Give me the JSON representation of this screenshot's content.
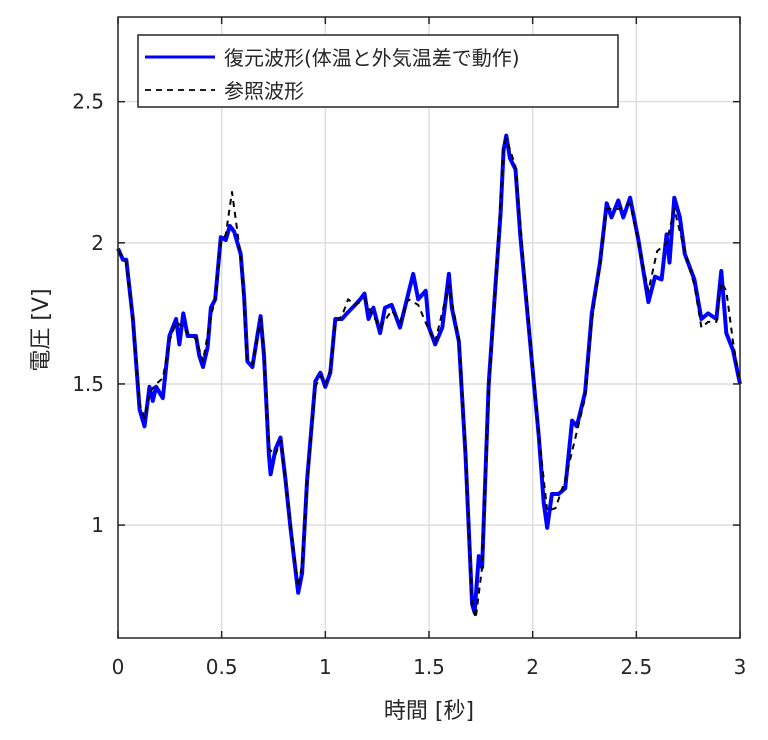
{
  "chart_data": {
    "type": "line",
    "xlabel": "時間 [秒]",
    "ylabel": "電圧 [V]",
    "xlim": [
      0,
      3
    ],
    "ylim": [
      0.6,
      2.8
    ],
    "xticks": [
      "0",
      "0.5",
      "1",
      "1.5",
      "2",
      "2.5",
      "3"
    ],
    "yticks": [
      "1",
      "1.5",
      "2",
      "2.5"
    ],
    "grid": true,
    "legend_position": "top-left",
    "series": [
      {
        "name": "復元波形(体温と外気温差で動作)",
        "color": "#0000ff",
        "style": "solid",
        "x": [
          0,
          0.024,
          0.04,
          0.072,
          0.104,
          0.128,
          0.152,
          0.168,
          0.184,
          0.216,
          0.248,
          0.28,
          0.296,
          0.315,
          0.336,
          0.376,
          0.392,
          0.41,
          0.432,
          0.448,
          0.469,
          0.496,
          0.52,
          0.539,
          0.56,
          0.592,
          0.608,
          0.624,
          0.648,
          0.672,
          0.688,
          0.704,
          0.728,
          0.736,
          0.76,
          0.784,
          0.808,
          0.832,
          0.848,
          0.869,
          0.888,
          0.912,
          0.928,
          0.952,
          0.976,
          1.0,
          1.024,
          1.048,
          1.08,
          1.104,
          1.144,
          1.168,
          1.189,
          1.208,
          1.232,
          1.264,
          1.288,
          1.32,
          1.36,
          1.4,
          1.424,
          1.448,
          1.484,
          1.5,
          1.53,
          1.564,
          1.596,
          1.61,
          1.644,
          1.676,
          1.708,
          1.72,
          1.74,
          1.756,
          1.788,
          1.82,
          1.845,
          1.86,
          1.873,
          1.89,
          1.917,
          1.94,
          1.99,
          2.03,
          2.053,
          2.07,
          2.093,
          2.125,
          2.157,
          2.19,
          2.213,
          2.253,
          2.285,
          2.325,
          2.357,
          2.38,
          2.413,
          2.437,
          2.47,
          2.51,
          2.558,
          2.59,
          2.622,
          2.646,
          2.66,
          2.683,
          2.71,
          2.734,
          2.78,
          2.814,
          2.846,
          2.886,
          2.91,
          2.934,
          2.966,
          3.0
        ],
        "y": [
          1.98,
          1.94,
          1.94,
          1.73,
          1.41,
          1.35,
          1.49,
          1.44,
          1.49,
          1.45,
          1.67,
          1.73,
          1.64,
          1.75,
          1.67,
          1.67,
          1.6,
          1.56,
          1.63,
          1.77,
          1.8,
          2.02,
          2.01,
          2.06,
          2.04,
          1.96,
          1.81,
          1.58,
          1.56,
          1.67,
          1.74,
          1.6,
          1.25,
          1.18,
          1.27,
          1.31,
          1.16,
          0.99,
          0.89,
          0.76,
          0.83,
          1.16,
          1.3,
          1.51,
          1.54,
          1.49,
          1.54,
          1.73,
          1.73,
          1.75,
          1.78,
          1.8,
          1.82,
          1.73,
          1.77,
          1.68,
          1.77,
          1.78,
          1.7,
          1.82,
          1.89,
          1.8,
          1.83,
          1.7,
          1.64,
          1.7,
          1.89,
          1.77,
          1.65,
          1.25,
          0.72,
          0.69,
          0.89,
          0.85,
          1.5,
          1.84,
          2.1,
          2.33,
          2.38,
          2.3,
          2.26,
          2.03,
          1.63,
          1.31,
          1.08,
          0.99,
          1.11,
          1.11,
          1.13,
          1.37,
          1.35,
          1.47,
          1.75,
          1.93,
          2.14,
          2.09,
          2.15,
          2.09,
          2.16,
          2.01,
          1.79,
          1.88,
          1.87,
          2.03,
          1.93,
          2.16,
          2.09,
          1.96,
          1.87,
          1.73,
          1.75,
          1.73,
          1.9,
          1.68,
          1.62,
          1.5
        ]
      },
      {
        "name": "参照波形",
        "color": "#000000",
        "style": "dashed",
        "x": [
          0,
          0.024,
          0.04,
          0.072,
          0.104,
          0.128,
          0.152,
          0.184,
          0.216,
          0.248,
          0.28,
          0.315,
          0.336,
          0.376,
          0.41,
          0.448,
          0.469,
          0.496,
          0.52,
          0.55,
          0.565,
          0.592,
          0.608,
          0.624,
          0.648,
          0.672,
          0.688,
          0.704,
          0.728,
          0.76,
          0.784,
          0.808,
          0.832,
          0.869,
          0.888,
          0.912,
          0.952,
          0.976,
          1.0,
          1.024,
          1.048,
          1.08,
          1.11,
          1.144,
          1.189,
          1.232,
          1.264,
          1.32,
          1.36,
          1.4,
          1.448,
          1.5,
          1.53,
          1.596,
          1.644,
          1.676,
          1.708,
          1.725,
          1.756,
          1.788,
          1.82,
          1.86,
          1.873,
          1.917,
          1.99,
          2.03,
          2.07,
          2.11,
          2.157,
          2.213,
          2.253,
          2.285,
          2.325,
          2.357,
          2.413,
          2.47,
          2.51,
          2.558,
          2.6,
          2.646,
          2.683,
          2.734,
          2.78,
          2.814,
          2.846,
          2.886,
          2.91,
          2.934,
          2.966,
          3.0
        ],
        "y": [
          1.97,
          1.95,
          1.93,
          1.72,
          1.43,
          1.38,
          1.47,
          1.5,
          1.52,
          1.65,
          1.72,
          1.7,
          1.68,
          1.66,
          1.58,
          1.74,
          1.8,
          2.0,
          2.03,
          2.18,
          2.1,
          1.95,
          1.78,
          1.58,
          1.57,
          1.66,
          1.73,
          1.62,
          1.27,
          1.25,
          1.3,
          1.16,
          1.0,
          0.78,
          0.86,
          1.15,
          1.49,
          1.53,
          1.5,
          1.55,
          1.72,
          1.74,
          1.8,
          1.78,
          1.8,
          1.74,
          1.7,
          1.76,
          1.72,
          1.8,
          1.78,
          1.69,
          1.65,
          1.85,
          1.66,
          1.26,
          0.72,
          0.67,
          0.85,
          1.48,
          1.83,
          2.34,
          2.37,
          2.27,
          1.64,
          1.32,
          1.05,
          1.06,
          1.16,
          1.33,
          1.45,
          1.72,
          1.92,
          2.12,
          2.12,
          2.14,
          2.0,
          1.83,
          1.97,
          2.0,
          2.12,
          1.97,
          1.85,
          1.7,
          1.72,
          1.72,
          1.86,
          1.83,
          1.65,
          1.5
        ]
      }
    ]
  }
}
